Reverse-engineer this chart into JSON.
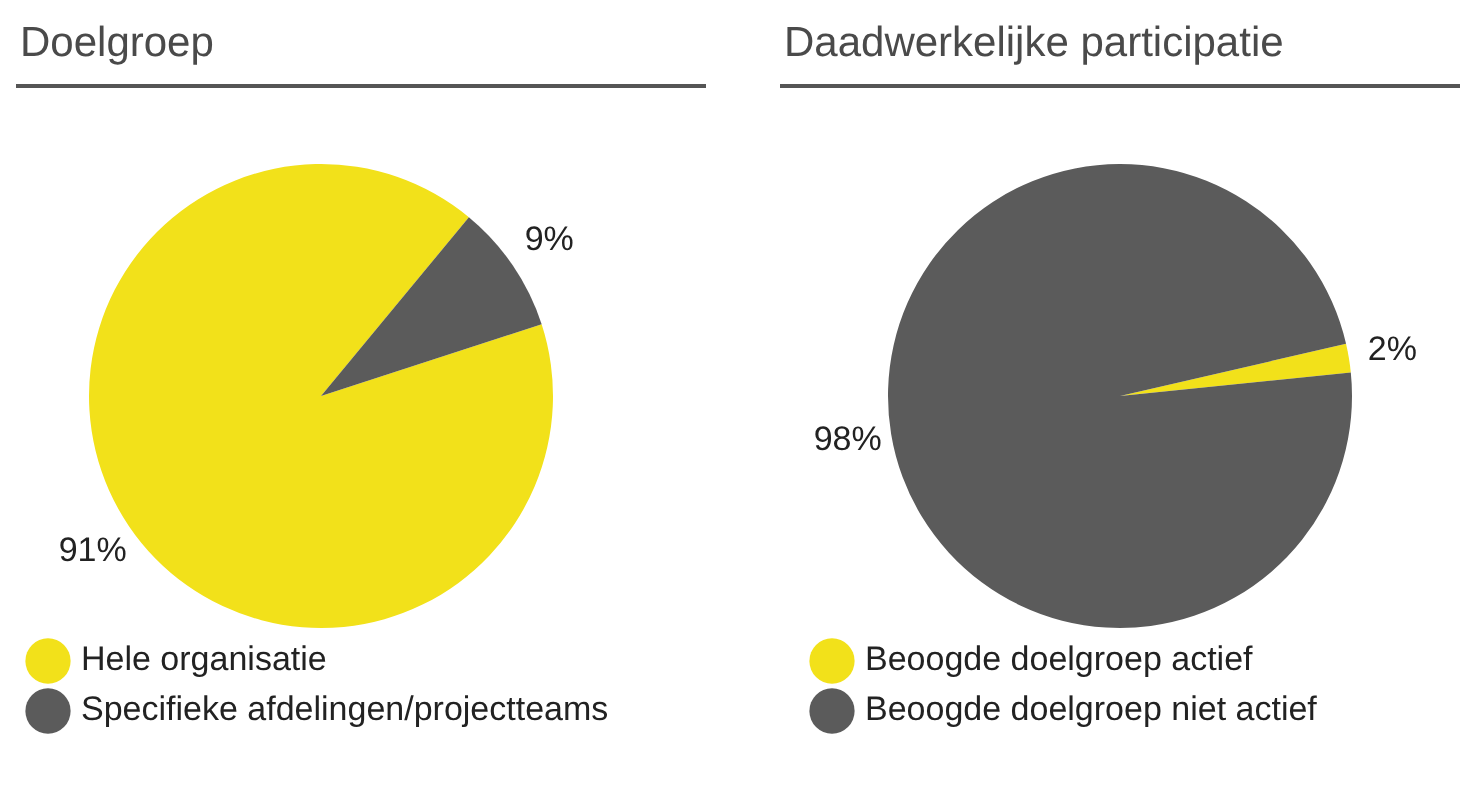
{
  "chart_data": [
    {
      "type": "pie",
      "title": "Doelgroep",
      "categories": [
        "Hele organisatie",
        "Specifieke afdelingen/projectteams"
      ],
      "values": [
        91,
        9
      ],
      "colors": [
        "#f2e11a",
        "#5b5b5b"
      ],
      "value_labels": [
        "91%",
        "9%"
      ],
      "legend": "bottom"
    },
    {
      "type": "pie",
      "title": "Daadwerkelijke participatie",
      "categories": [
        "Beoogde doelgroep actief",
        "Beoogde doelgroep niet actief"
      ],
      "values": [
        2,
        98
      ],
      "colors": [
        "#f2e11a",
        "#5b5b5b"
      ],
      "value_labels": [
        "2%",
        "98%"
      ],
      "legend": "bottom"
    }
  ]
}
